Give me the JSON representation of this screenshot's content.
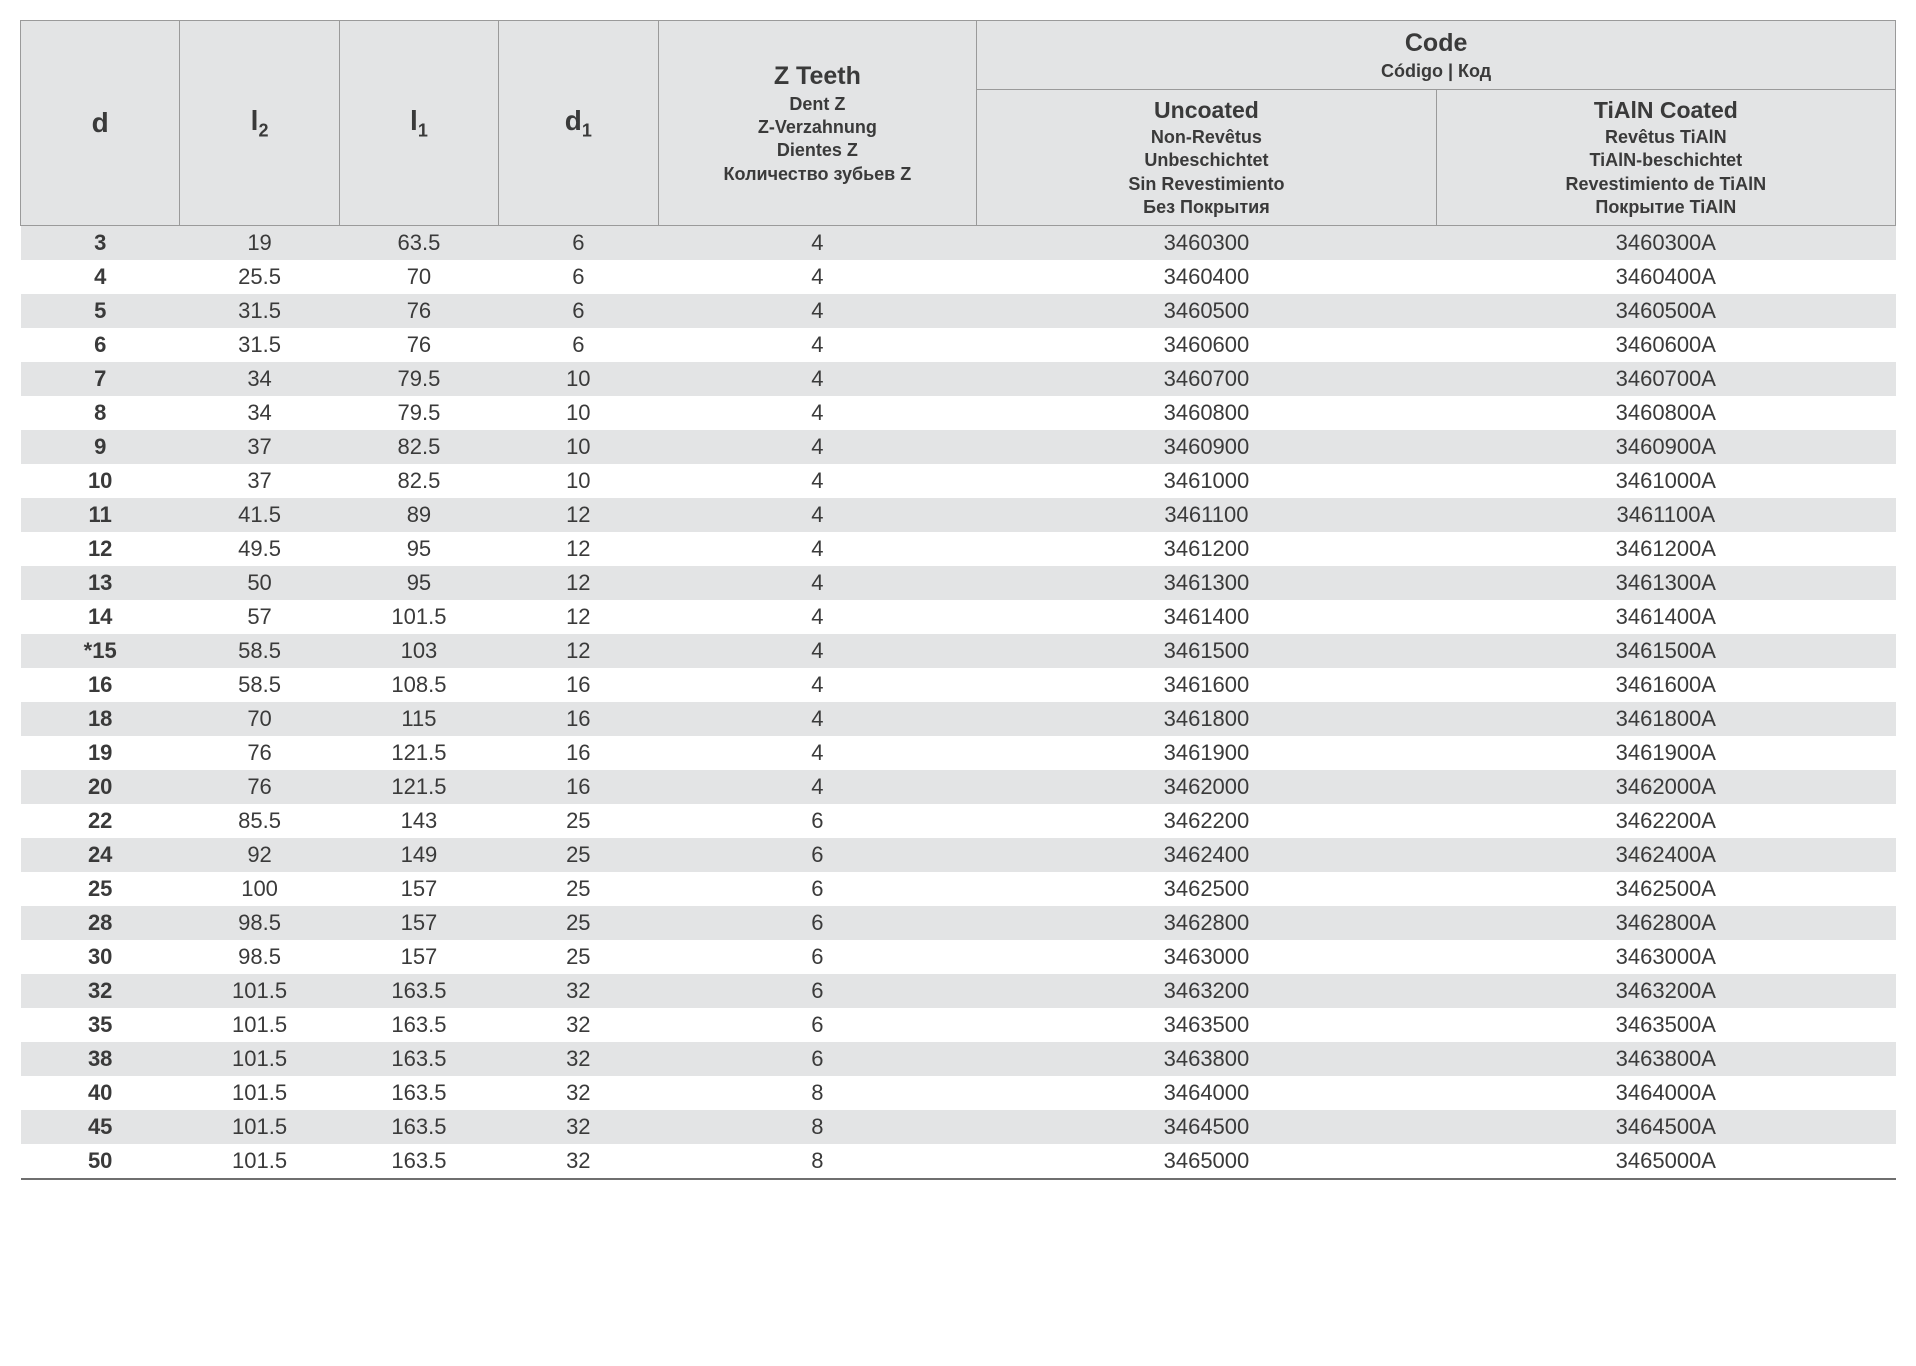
{
  "colors": {
    "row_odd_bg": "#e3e4e5",
    "row_even_bg": "#ffffff",
    "border": "#9a9a9a",
    "text": "#3a3a3a"
  },
  "headers": {
    "d": "d",
    "l2_base": "l",
    "l2_sub": "2",
    "l1_base": "l",
    "l1_sub": "1",
    "d1_base": "d",
    "d1_sub": "1",
    "z_main": "Z Teeth",
    "z_subs": [
      "Dent Z",
      "Z-Verzahnung",
      "Dientes Z",
      "Количество зубьев Z"
    ],
    "code_main": "Code",
    "code_sub": "Código | Код",
    "uncoated_main": "Uncoated",
    "uncoated_subs": [
      "Non-Revêtus",
      "Unbeschichtet",
      "Sin Revestimiento",
      "Без Покрытия"
    ],
    "coated_main": "TiAlN Coated",
    "coated_subs": [
      "Revêtus TiAlN",
      "TiAlN-beschichtet",
      "Revestimiento de TiAlN",
      "Покрытие TiAlN"
    ]
  },
  "rows": [
    {
      "d": "3",
      "l2": "19",
      "l1": "63.5",
      "d1": "6",
      "z": "4",
      "un": "3460300",
      "co": "3460300A"
    },
    {
      "d": "4",
      "l2": "25.5",
      "l1": "70",
      "d1": "6",
      "z": "4",
      "un": "3460400",
      "co": "3460400A"
    },
    {
      "d": "5",
      "l2": "31.5",
      "l1": "76",
      "d1": "6",
      "z": "4",
      "un": "3460500",
      "co": "3460500A"
    },
    {
      "d": "6",
      "l2": "31.5",
      "l1": "76",
      "d1": "6",
      "z": "4",
      "un": "3460600",
      "co": "3460600A"
    },
    {
      "d": "7",
      "l2": "34",
      "l1": "79.5",
      "d1": "10",
      "z": "4",
      "un": "3460700",
      "co": "3460700A"
    },
    {
      "d": "8",
      "l2": "34",
      "l1": "79.5",
      "d1": "10",
      "z": "4",
      "un": "3460800",
      "co": "3460800A"
    },
    {
      "d": "9",
      "l2": "37",
      "l1": "82.5",
      "d1": "10",
      "z": "4",
      "un": "3460900",
      "co": "3460900A"
    },
    {
      "d": "10",
      "l2": "37",
      "l1": "82.5",
      "d1": "10",
      "z": "4",
      "un": "3461000",
      "co": "3461000A"
    },
    {
      "d": "11",
      "l2": "41.5",
      "l1": "89",
      "d1": "12",
      "z": "4",
      "un": "3461100",
      "co": "3461100A"
    },
    {
      "d": "12",
      "l2": "49.5",
      "l1": "95",
      "d1": "12",
      "z": "4",
      "un": "3461200",
      "co": "3461200A"
    },
    {
      "d": "13",
      "l2": "50",
      "l1": "95",
      "d1": "12",
      "z": "4",
      "un": "3461300",
      "co": "3461300A"
    },
    {
      "d": "14",
      "l2": "57",
      "l1": "101.5",
      "d1": "12",
      "z": "4",
      "un": "3461400",
      "co": "3461400A"
    },
    {
      "d": "*15",
      "l2": "58.5",
      "l1": "103",
      "d1": "12",
      "z": "4",
      "un": "3461500",
      "co": "3461500A"
    },
    {
      "d": "16",
      "l2": "58.5",
      "l1": "108.5",
      "d1": "16",
      "z": "4",
      "un": "3461600",
      "co": "3461600A"
    },
    {
      "d": "18",
      "l2": "70",
      "l1": "115",
      "d1": "16",
      "z": "4",
      "un": "3461800",
      "co": "3461800A"
    },
    {
      "d": "19",
      "l2": "76",
      "l1": "121.5",
      "d1": "16",
      "z": "4",
      "un": "3461900",
      "co": "3461900A"
    },
    {
      "d": "20",
      "l2": "76",
      "l1": "121.5",
      "d1": "16",
      "z": "4",
      "un": "3462000",
      "co": "3462000A"
    },
    {
      "d": "22",
      "l2": "85.5",
      "l1": "143",
      "d1": "25",
      "z": "6",
      "un": "3462200",
      "co": "3462200A"
    },
    {
      "d": "24",
      "l2": "92",
      "l1": "149",
      "d1": "25",
      "z": "6",
      "un": "3462400",
      "co": "3462400A"
    },
    {
      "d": "25",
      "l2": "100",
      "l1": "157",
      "d1": "25",
      "z": "6",
      "un": "3462500",
      "co": "3462500A"
    },
    {
      "d": "28",
      "l2": "98.5",
      "l1": "157",
      "d1": "25",
      "z": "6",
      "un": "3462800",
      "co": "3462800A"
    },
    {
      "d": "30",
      "l2": "98.5",
      "l1": "157",
      "d1": "25",
      "z": "6",
      "un": "3463000",
      "co": "3463000A"
    },
    {
      "d": "32",
      "l2": "101.5",
      "l1": "163.5",
      "d1": "32",
      "z": "6",
      "un": "3463200",
      "co": "3463200A"
    },
    {
      "d": "35",
      "l2": "101.5",
      "l1": "163.5",
      "d1": "32",
      "z": "6",
      "un": "3463500",
      "co": "3463500A"
    },
    {
      "d": "38",
      "l2": "101.5",
      "l1": "163.5",
      "d1": "32",
      "z": "6",
      "un": "3463800",
      "co": "3463800A"
    },
    {
      "d": "40",
      "l2": "101.5",
      "l1": "163.5",
      "d1": "32",
      "z": "8",
      "un": "3464000",
      "co": "3464000A"
    },
    {
      "d": "45",
      "l2": "101.5",
      "l1": "163.5",
      "d1": "32",
      "z": "8",
      "un": "3464500",
      "co": "3464500A"
    },
    {
      "d": "50",
      "l2": "101.5",
      "l1": "163.5",
      "d1": "32",
      "z": "8",
      "un": "3465000",
      "co": "3465000A"
    }
  ]
}
